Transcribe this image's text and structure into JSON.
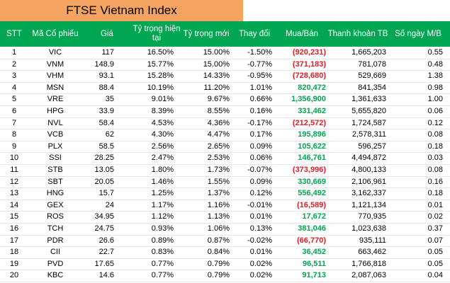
{
  "title": "FTSE Vietnam Index",
  "colors": {
    "header_bg": "#00a651",
    "title_bg": "#f4a460",
    "buy": "#00a651",
    "sell": "#e31b23"
  },
  "headers": {
    "stt": "STT",
    "code": "Mã Cổ phiếu",
    "price": "Giá",
    "current_weight": "Tỷ trọng hiện tại",
    "new_weight": "Tỷ trọng mới",
    "change": "Thay đổi",
    "buy_sell": "Mua/Bán",
    "liquidity": "Thanh khoản TB",
    "days": "Số ngày M/B"
  },
  "rows": [
    {
      "stt": "1",
      "code": "VIC",
      "price": "117",
      "current": "16.50%",
      "new": "15.00%",
      "change": "-1.50%",
      "buy_sell": "(920,231)",
      "sign": "neg",
      "liquidity": "1,665,203",
      "days": "0.55"
    },
    {
      "stt": "2",
      "code": "VNM",
      "price": "148.9",
      "current": "15.77%",
      "new": "15.00%",
      "change": "-0.77%",
      "buy_sell": "(371,183)",
      "sign": "neg",
      "liquidity": "781,078",
      "days": "0.48"
    },
    {
      "stt": "3",
      "code": "VHM",
      "price": "93.1",
      "current": "15.28%",
      "new": "14.33%",
      "change": "-0.95%",
      "buy_sell": "(728,680)",
      "sign": "neg",
      "liquidity": "529,669",
      "days": "1.38"
    },
    {
      "stt": "4",
      "code": "MSN",
      "price": "88.4",
      "current": "10.19%",
      "new": "11.20%",
      "change": "1.01%",
      "buy_sell": "820,472",
      "sign": "pos",
      "liquidity": "841,354",
      "days": "0.98"
    },
    {
      "stt": "5",
      "code": "VRE",
      "price": "35",
      "current": "9.01%",
      "new": "9.67%",
      "change": "0.66%",
      "buy_sell": "1,356,900",
      "sign": "pos",
      "liquidity": "1,361,633",
      "days": "1.00"
    },
    {
      "stt": "6",
      "code": "HPG",
      "price": "33.9",
      "current": "8.39%",
      "new": "8.55%",
      "change": "0.16%",
      "buy_sell": "331,462",
      "sign": "pos",
      "liquidity": "5,655,820",
      "days": "0.06"
    },
    {
      "stt": "7",
      "code": "NVL",
      "price": "58.4",
      "current": "4.53%",
      "new": "4.36%",
      "change": "-0.17%",
      "buy_sell": "(212,572)",
      "sign": "neg",
      "liquidity": "1,724,587",
      "days": "0.12"
    },
    {
      "stt": "8",
      "code": "VCB",
      "price": "62",
      "current": "4.30%",
      "new": "4.47%",
      "change": "0.17%",
      "buy_sell": "195,896",
      "sign": "pos",
      "liquidity": "2,578,311",
      "days": "0.08"
    },
    {
      "stt": "9",
      "code": "PLX",
      "price": "58.5",
      "current": "2.56%",
      "new": "2.65%",
      "change": "0.09%",
      "buy_sell": "105,622",
      "sign": "pos",
      "liquidity": "596,257",
      "days": "0.18"
    },
    {
      "stt": "10",
      "code": "SSI",
      "price": "28.25",
      "current": "2.47%",
      "new": "2.53%",
      "change": "0.06%",
      "buy_sell": "146,761",
      "sign": "pos",
      "liquidity": "4,494,872",
      "days": "0.03"
    },
    {
      "stt": "11",
      "code": "STB",
      "price": "13.05",
      "current": "1.80%",
      "new": "1.73%",
      "change": "-0.07%",
      "buy_sell": "(373,996)",
      "sign": "neg",
      "liquidity": "4,800,133",
      "days": "0.08"
    },
    {
      "stt": "12",
      "code": "SBT",
      "price": "20.05",
      "current": "1.46%",
      "new": "1.55%",
      "change": "0.09%",
      "buy_sell": "330,669",
      "sign": "pos",
      "liquidity": "2,106,961",
      "days": "0.16"
    },
    {
      "stt": "13",
      "code": "HNG",
      "price": "15.7",
      "current": "1.25%",
      "new": "1.37%",
      "change": "0.12%",
      "buy_sell": "556,492",
      "sign": "pos",
      "liquidity": "3,162,337",
      "days": "0.18"
    },
    {
      "stt": "14",
      "code": "GEX",
      "price": "24",
      "current": "1.17%",
      "new": "1.16%",
      "change": "-0.01%",
      "buy_sell": "(16,589)",
      "sign": "neg",
      "liquidity": "1,121,134",
      "days": "0.01"
    },
    {
      "stt": "15",
      "code": "ROS",
      "price": "34.95",
      "current": "1.12%",
      "new": "1.13%",
      "change": "0.01%",
      "buy_sell": "17,672",
      "sign": "pos",
      "liquidity": "770,935",
      "days": "0.02"
    },
    {
      "stt": "16",
      "code": "TCH",
      "price": "24.75",
      "current": "0.93%",
      "new": "1.06%",
      "change": "0.13%",
      "buy_sell": "381,046",
      "sign": "pos",
      "liquidity": "1,023,638",
      "days": "0.37"
    },
    {
      "stt": "17",
      "code": "PDR",
      "price": "26.6",
      "current": "0.89%",
      "new": "0.87%",
      "change": "-0.02%",
      "buy_sell": "(66,770)",
      "sign": "neg",
      "liquidity": "935,111",
      "days": "0.07"
    },
    {
      "stt": "18",
      "code": "CII",
      "price": "22.7",
      "current": "0.83%",
      "new": "0.84%",
      "change": "0.01%",
      "buy_sell": "36,452",
      "sign": "pos",
      "liquidity": "663,462",
      "days": "0.05"
    },
    {
      "stt": "19",
      "code": "PVD",
      "price": "17.65",
      "current": "0.77%",
      "new": "0.79%",
      "change": "0.02%",
      "buy_sell": "96,511",
      "sign": "pos",
      "liquidity": "1,766,818",
      "days": "0.05"
    },
    {
      "stt": "20",
      "code": "KBC",
      "price": "14.6",
      "current": "0.77%",
      "new": "0.79%",
      "change": "0.02%",
      "buy_sell": "91,713",
      "sign": "pos",
      "liquidity": "2,087,063",
      "days": "0.04"
    }
  ]
}
